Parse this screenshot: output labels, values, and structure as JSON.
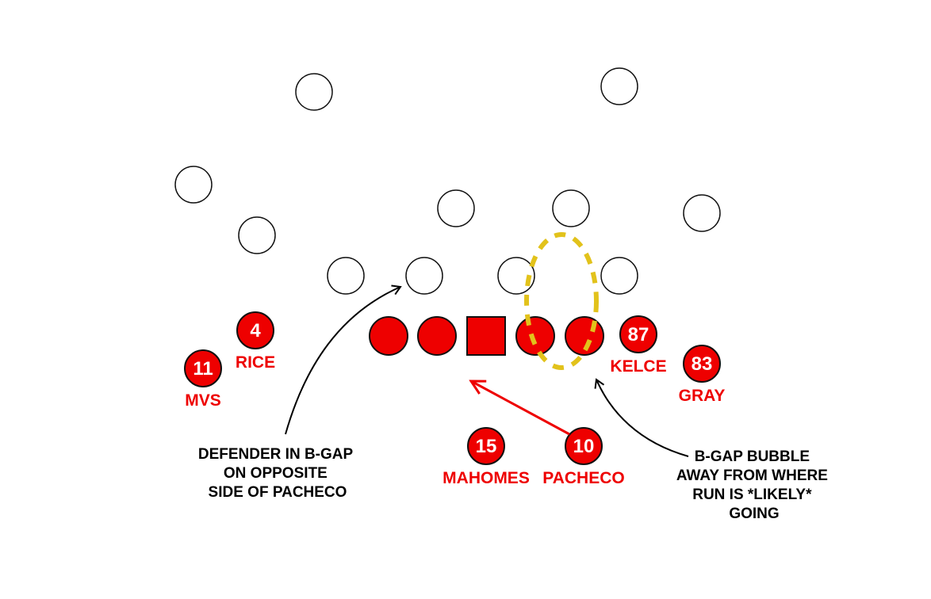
{
  "colors": {
    "offense": "#EE0000",
    "outline": "#111111",
    "bubble": "#E2C21B",
    "defense_fill": "#FFFFFF",
    "text_note": "#000000"
  },
  "skill_players": [
    {
      "number": "4",
      "name": "RICE"
    },
    {
      "number": "11",
      "name": "MVS"
    },
    {
      "number": "87",
      "name": "KELCE"
    },
    {
      "number": "83",
      "name": "GRAY"
    },
    {
      "number": "15",
      "name": "MAHOMES"
    },
    {
      "number": "10",
      "name": "PACHECO"
    }
  ],
  "annotations": {
    "left": [
      "DEFENDER IN B-GAP",
      "ON OPPOSITE",
      "SIDE OF PACHECO"
    ],
    "right": [
      "B-GAP BUBBLE",
      "AWAY FROM WHERE",
      "RUN IS *LIKELY*",
      "GOING"
    ]
  }
}
